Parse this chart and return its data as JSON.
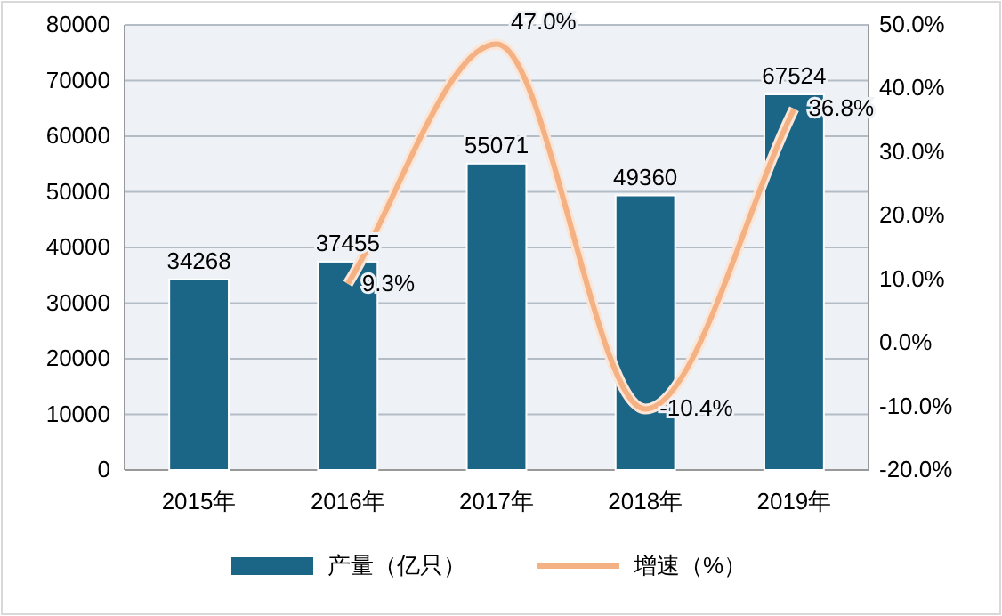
{
  "chart_data": {
    "type": "bar",
    "categories": [
      "2015年",
      "2016年",
      "2017年",
      "2018年",
      "2019年"
    ],
    "series": [
      {
        "name": "产量（亿只）",
        "color": "#1b6587",
        "values": [
          34268,
          37455,
          55071,
          49360,
          67524
        ],
        "data_labels": true
      },
      {
        "name": "增速（%）",
        "type": "line",
        "axis": "y2",
        "color": "#f4b183",
        "values": [
          null,
          9.3,
          47.0,
          -10.4,
          36.8
        ],
        "value_labels": [
          null,
          "9.3%",
          "47.0%",
          "-10.4%",
          "36.8%"
        ]
      }
    ],
    "ylim": [
      0,
      80000
    ],
    "yticks": [
      0,
      10000,
      20000,
      30000,
      40000,
      50000,
      60000,
      70000,
      80000
    ],
    "y2lim": [
      -20,
      50
    ],
    "y2ticks": [
      {
        "value": -20,
        "label": "-20.0%"
      },
      {
        "value": -10,
        "label": "-10.0%"
      },
      {
        "value": 0,
        "label": "0.0%"
      },
      {
        "value": 10,
        "label": "10.0%"
      },
      {
        "value": 20,
        "label": "20.0%"
      },
      {
        "value": 30,
        "label": "30.0%"
      },
      {
        "value": 40,
        "label": "40.0%"
      },
      {
        "value": 50,
        "label": "50.0%"
      }
    ],
    "grid": "y",
    "legend": "bottom",
    "marker": "none",
    "line_style": "solid"
  }
}
